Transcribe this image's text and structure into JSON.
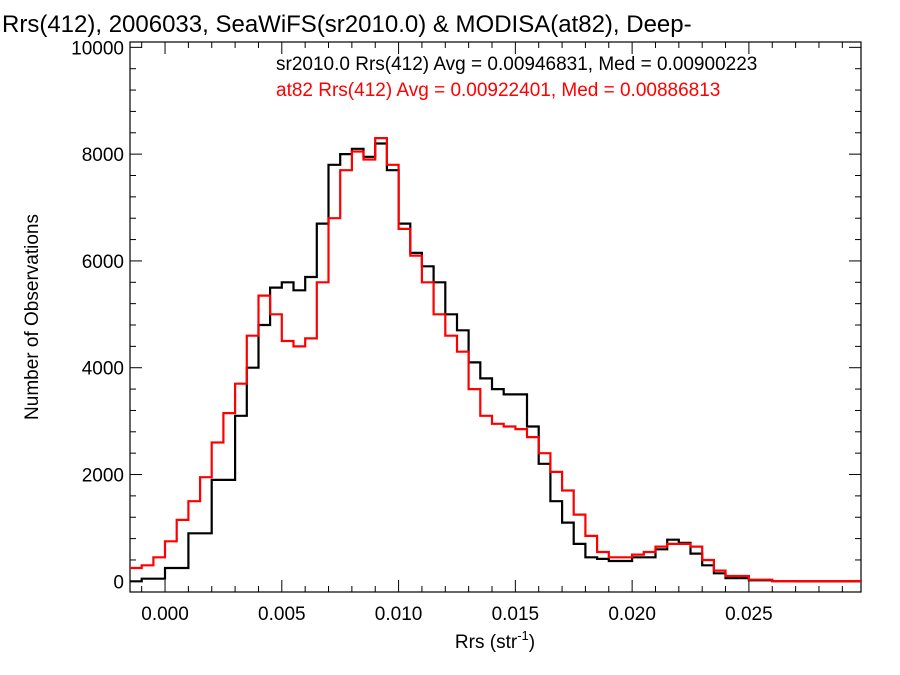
{
  "chart_data": {
    "type": "line",
    "title": "Rrs(412), 2006033, SeaWiFS(sr2010.0) & MODISA(at82), Deep-",
    "xlabel_main": "Rrs (str",
    "xlabel_sup": "-1",
    "xlabel_close": ")",
    "ylabel": "Number of Observations",
    "xlim": [
      -0.0015,
      0.0298
    ],
    "ylim": [
      -200,
      10100
    ],
    "x_ticks": [
      0.0,
      0.005,
      0.01,
      0.015,
      0.02,
      0.025
    ],
    "x_tick_labels": [
      "0.000",
      "0.005",
      "0.010",
      "0.015",
      "0.020",
      "0.025"
    ],
    "y_ticks": [
      0,
      2000,
      4000,
      6000,
      8000,
      10000
    ],
    "y_tick_labels": [
      "0",
      "2000",
      "4000",
      "6000",
      "8000",
      "10000"
    ],
    "series": [
      {
        "name": "sr2010.0 Rrs(412) Avg = 0.00946831, Med = 0.00900223",
        "color": "#000000",
        "x": [
          -0.0015,
          -0.001,
          0.0,
          0.001,
          0.002,
          0.003,
          0.0035,
          0.004,
          0.0045,
          0.005,
          0.0055,
          0.006,
          0.0065,
          0.007,
          0.0075,
          0.008,
          0.0085,
          0.009,
          0.0095,
          0.01,
          0.0105,
          0.011,
          0.0115,
          0.012,
          0.0125,
          0.013,
          0.0135,
          0.014,
          0.0145,
          0.015,
          0.0155,
          0.016,
          0.0165,
          0.017,
          0.0175,
          0.018,
          0.0185,
          0.019,
          0.02,
          0.021,
          0.0215,
          0.022,
          0.0225,
          0.023,
          0.0235,
          0.024,
          0.025,
          0.026,
          0.027,
          0.0298
        ],
        "y": [
          0,
          50,
          250,
          900,
          1900,
          3100,
          4000,
          4800,
          5500,
          5600,
          5450,
          5700,
          6700,
          7800,
          8000,
          8100,
          7950,
          8200,
          7700,
          6700,
          6150,
          5900,
          5600,
          5000,
          4700,
          4100,
          3800,
          3600,
          3500,
          3500,
          2900,
          2200,
          1500,
          1100,
          700,
          450,
          420,
          380,
          450,
          600,
          780,
          720,
          520,
          300,
          150,
          60,
          20,
          5,
          0,
          0
        ]
      },
      {
        "name": "at82 Rrs(412) Avg = 0.00922401, Med = 0.00886813",
        "color": "#ff0000",
        "x": [
          -0.0015,
          -0.001,
          -0.0005,
          0.0,
          0.0005,
          0.001,
          0.0015,
          0.002,
          0.0025,
          0.003,
          0.0035,
          0.004,
          0.0045,
          0.005,
          0.0055,
          0.006,
          0.0065,
          0.007,
          0.0075,
          0.008,
          0.0085,
          0.009,
          0.0095,
          0.01,
          0.0105,
          0.011,
          0.0115,
          0.012,
          0.0125,
          0.013,
          0.0135,
          0.014,
          0.0145,
          0.015,
          0.0155,
          0.016,
          0.0165,
          0.017,
          0.0175,
          0.018,
          0.0185,
          0.019,
          0.0195,
          0.02,
          0.0205,
          0.021,
          0.0215,
          0.022,
          0.0225,
          0.023,
          0.0235,
          0.024,
          0.025,
          0.026,
          0.0298
        ],
        "y": [
          250,
          300,
          450,
          750,
          1150,
          1500,
          1950,
          2600,
          3150,
          3700,
          4600,
          5350,
          5000,
          4500,
          4400,
          4550,
          5600,
          6800,
          7700,
          8050,
          7900,
          8300,
          7800,
          6600,
          6100,
          5600,
          5000,
          4600,
          4300,
          3600,
          3100,
          2950,
          2900,
          2850,
          2700,
          2400,
          2050,
          1700,
          1250,
          850,
          550,
          450,
          450,
          500,
          550,
          650,
          700,
          700,
          650,
          400,
          200,
          100,
          30,
          5,
          0
        ]
      }
    ]
  }
}
